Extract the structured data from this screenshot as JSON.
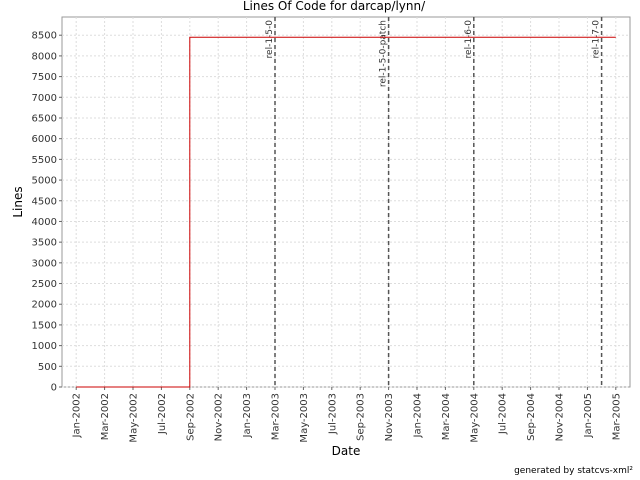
{
  "chart_data": {
    "type": "line",
    "title": "Lines Of Code for darcap/lynn/",
    "x_label": "Date",
    "y_label": "Lines",
    "footer": "generated by statcvs-xml²",
    "x": [
      "2002-01",
      "2002-09",
      "2002-09",
      "2005-03"
    ],
    "series": [
      {
        "name": "Lines",
        "color": "#cc0000",
        "values": [
          0,
          0,
          8450,
          8450
        ]
      }
    ],
    "xlim": [
      "2001-12",
      "2005-04"
    ],
    "xticks": [
      {
        "value": "2002-01",
        "label": "Jan-2002"
      },
      {
        "value": "2002-03",
        "label": "Mar-2002"
      },
      {
        "value": "2002-05",
        "label": "May-2002"
      },
      {
        "value": "2002-07",
        "label": "Jul-2002"
      },
      {
        "value": "2002-09",
        "label": "Sep-2002"
      },
      {
        "value": "2002-11",
        "label": "Nov-2002"
      },
      {
        "value": "2003-01",
        "label": "Jan-2003"
      },
      {
        "value": "2003-03",
        "label": "Mar-2003"
      },
      {
        "value": "2003-05",
        "label": "May-2003"
      },
      {
        "value": "2003-07",
        "label": "Jul-2003"
      },
      {
        "value": "2003-09",
        "label": "Sep-2003"
      },
      {
        "value": "2003-11",
        "label": "Nov-2003"
      },
      {
        "value": "2004-01",
        "label": "Jan-2004"
      },
      {
        "value": "2004-03",
        "label": "Mar-2004"
      },
      {
        "value": "2004-05",
        "label": "May-2004"
      },
      {
        "value": "2004-07",
        "label": "Jul-2004"
      },
      {
        "value": "2004-09",
        "label": "Sep-2004"
      },
      {
        "value": "2004-11",
        "label": "Nov-2004"
      },
      {
        "value": "2005-01",
        "label": "Jan-2005"
      },
      {
        "value": "2005-03",
        "label": "Mar-2005"
      }
    ],
    "ylim": [
      0,
      8940
    ],
    "yticks": [
      0,
      500,
      1000,
      1500,
      2000,
      2500,
      3000,
      3500,
      4000,
      4500,
      5000,
      5500,
      6000,
      6500,
      7000,
      7500,
      8000,
      8500
    ],
    "grid": true,
    "markers": [
      {
        "x": "2003-03",
        "label": "rel-1-5-0"
      },
      {
        "x": "2003-11",
        "label": "rel-1-5-0-patch"
      },
      {
        "x": "2004-05",
        "label": "rel-1-6-0"
      },
      {
        "x": "2005-02",
        "label": "rel-1-7-0"
      }
    ]
  }
}
